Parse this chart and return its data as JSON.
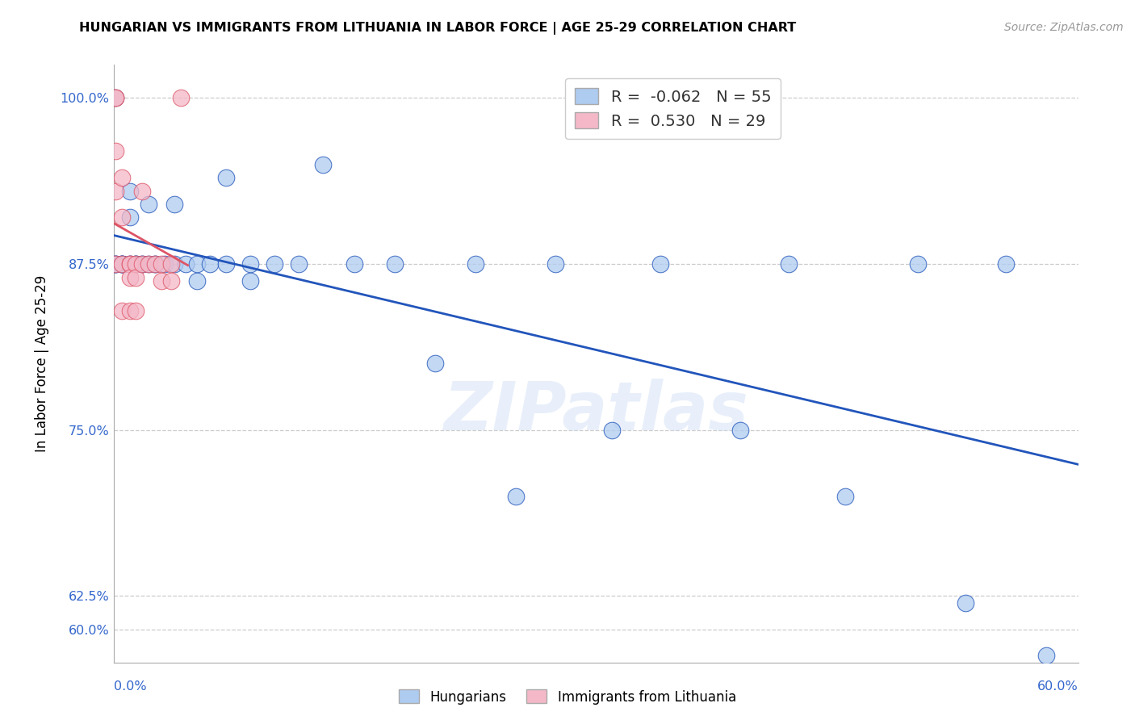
{
  "title": "HUNGARIAN VS IMMIGRANTS FROM LITHUANIA IN LABOR FORCE | AGE 25-29 CORRELATION CHART",
  "source": "Source: ZipAtlas.com",
  "ylabel": "In Labor Force | Age 25-29",
  "xlabel_bottom_left": "0.0%",
  "xlabel_bottom_right": "60.0%",
  "y_ticks": [
    0.6,
    0.625,
    0.75,
    0.875,
    1.0
  ],
  "y_tick_labels": [
    "60.0%",
    "62.5%",
    "75.0%",
    "87.5%",
    "100.0%"
  ],
  "xmin": 0.0,
  "xmax": 0.6,
  "ymin": 0.575,
  "ymax": 1.025,
  "blue_R": -0.062,
  "blue_N": 55,
  "pink_R": 0.53,
  "pink_N": 29,
  "blue_color": "#aecbf0",
  "pink_color": "#f4b8c8",
  "blue_line_color": "#2255bb",
  "pink_line_color": "#dd5566",
  "watermark": "ZIPatlas",
  "blue_points_x": [
    0.001,
    0.001,
    0.001,
    0.001,
    0.005,
    0.005,
    0.005,
    0.005,
    0.01,
    0.01,
    0.01,
    0.01,
    0.014,
    0.014,
    0.014,
    0.018,
    0.018,
    0.022,
    0.022,
    0.026,
    0.026,
    0.032,
    0.038,
    0.038,
    0.045,
    0.052,
    0.052,
    0.06,
    0.07,
    0.07,
    0.085,
    0.085,
    0.1,
    0.115,
    0.13,
    0.15,
    0.175,
    0.2,
    0.225,
    0.25,
    0.275,
    0.31,
    0.34,
    0.39,
    0.42,
    0.455,
    0.5,
    0.53,
    0.555,
    0.58
  ],
  "blue_points_y": [
    1.0,
    0.875,
    0.875,
    0.875,
    0.875,
    0.875,
    0.875,
    0.875,
    0.93,
    0.91,
    0.875,
    0.875,
    0.875,
    0.875,
    0.875,
    0.875,
    0.875,
    0.92,
    0.875,
    0.875,
    0.875,
    0.875,
    0.92,
    0.875,
    0.875,
    0.875,
    0.862,
    0.875,
    0.94,
    0.875,
    0.875,
    0.862,
    0.875,
    0.875,
    0.95,
    0.875,
    0.875,
    0.8,
    0.875,
    0.7,
    0.875,
    0.75,
    0.875,
    0.75,
    0.875,
    0.7,
    0.875,
    0.62,
    0.875,
    0.58
  ],
  "pink_points_x": [
    0.001,
    0.001,
    0.001,
    0.001,
    0.001,
    0.005,
    0.005,
    0.005,
    0.005,
    0.01,
    0.01,
    0.01,
    0.01,
    0.014,
    0.014,
    0.014,
    0.018,
    0.018,
    0.022,
    0.026,
    0.03,
    0.03,
    0.036,
    0.036,
    0.042
  ],
  "pink_points_y": [
    1.0,
    1.0,
    0.96,
    0.93,
    0.875,
    0.94,
    0.91,
    0.875,
    0.84,
    0.875,
    0.875,
    0.865,
    0.84,
    0.875,
    0.865,
    0.84,
    0.93,
    0.875,
    0.875,
    0.875,
    0.875,
    0.862,
    0.875,
    0.862,
    1.0
  ]
}
